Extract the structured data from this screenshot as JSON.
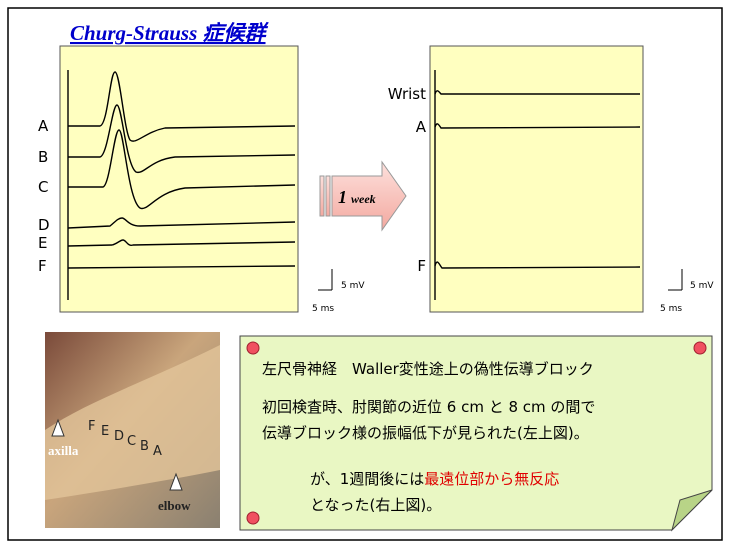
{
  "title": "Churg-Strauss 症候群",
  "left_panel": {
    "labels": [
      "A",
      "B",
      "C",
      "D",
      "E",
      "F"
    ],
    "scale_y": "5 mV",
    "scale_x": "5 ms"
  },
  "arrow": {
    "number": "1",
    "unit": "week"
  },
  "right_panel": {
    "labels": [
      "Wrist",
      "A",
      "F"
    ],
    "scale_y": "5 mV",
    "scale_x": "5 ms"
  },
  "photo": {
    "points": [
      "F",
      "E",
      "D",
      "C",
      "B",
      "A"
    ],
    "axilla": "axilla",
    "elbow": "elbow"
  },
  "note": {
    "heading": "左尺骨神経　Waller変性途上の偽性伝導ブロック",
    "line1": "初回検査時、肘関節の近位 6 cm と 8 cm の間で",
    "line2": "伝導ブロック様の振幅低下が見られた(左上図)。",
    "line3_pre": "が、1週間後には",
    "line3_red": "最遠位部から無反応",
    "line4": "となった(右上図)。"
  }
}
